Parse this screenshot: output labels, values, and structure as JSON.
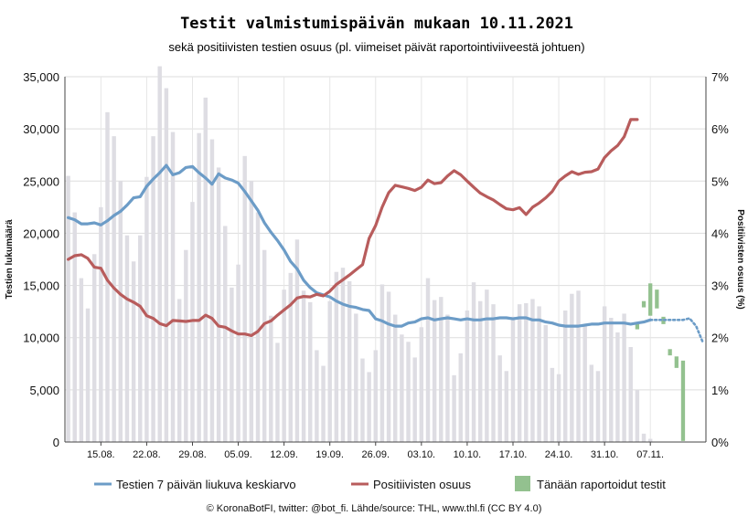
{
  "chart_data": {
    "type": "bar+line",
    "title": "Testit valmistumispäivän mukaan 10.11.2021",
    "subtitle": "sekä positiivisten testien osuus (pl. viimeiset päivät raportointiviiveestä johtuen)",
    "ylabel_left": "Testien lukumäärä",
    "ylabel_right": "Positiivisten osuus (%)",
    "ylim_left": [
      0,
      35000
    ],
    "ylim_right": [
      0,
      7
    ],
    "yticks_left": [
      "0",
      "5,000",
      "10,000",
      "15,000",
      "20,000",
      "25,000",
      "30,000",
      "35,000"
    ],
    "yticks_right": [
      "0%",
      "1%",
      "2%",
      "3%",
      "4%",
      "5%",
      "6%",
      "7%"
    ],
    "x_range": [
      1,
      98
    ],
    "x_ticks": [
      {
        "x": 6,
        "label": "15.08."
      },
      {
        "x": 13,
        "label": "22.08."
      },
      {
        "x": 20,
        "label": "29.08."
      },
      {
        "x": 27,
        "label": "05.09."
      },
      {
        "x": 34,
        "label": "12.09."
      },
      {
        "x": 41,
        "label": "19.09."
      },
      {
        "x": 48,
        "label": "26.09."
      },
      {
        "x": 55,
        "label": "03.10."
      },
      {
        "x": 62,
        "label": "10.10."
      },
      {
        "x": 69,
        "label": "17.10."
      },
      {
        "x": 76,
        "label": "24.10."
      },
      {
        "x": 83,
        "label": "31.10."
      },
      {
        "x": 90,
        "label": "07.11."
      }
    ],
    "grid": true,
    "legend_position": "bottom",
    "bars": [
      25500,
      22000,
      15700,
      12800,
      18000,
      22500,
      31600,
      29300,
      25000,
      19800,
      17300,
      19800,
      25400,
      29300,
      36000,
      33900,
      29700,
      13700,
      18400,
      23000,
      29600,
      33000,
      29000,
      26300,
      20700,
      14800,
      17000,
      27400,
      25000,
      22000,
      18400,
      12100,
      9500,
      14600,
      16200,
      19400,
      14500,
      13400,
      8800,
      7300,
      13500,
      16300,
      16700,
      15400,
      12300,
      8000,
      6700,
      8800,
      15100,
      14400,
      12200,
      10300,
      9600,
      8100,
      11000,
      15700,
      13600,
      13900,
      12200,
      6400,
      8500,
      12600,
      15300,
      13500,
      14600,
      13200,
      8300,
      6800,
      12000,
      13200,
      13300,
      13700,
      13000,
      11200,
      7100,
      6500,
      12600,
      14200,
      14500,
      11200,
      7400,
      6800,
      13000,
      11900,
      10500,
      12300,
      9100,
      5000,
      800,
      300
    ],
    "series": [
      {
        "name": "Testien 7 päivän liukuva keskiarvo",
        "color": "#6c9cc7",
        "axis": "left",
        "values": [
          21500,
          21300,
          20900,
          20900,
          21000,
          20800,
          21200,
          21700,
          22100,
          22700,
          23400,
          23500,
          24500,
          25200,
          25800,
          26500,
          25600,
          25800,
          26300,
          26400,
          25800,
          25300,
          24700,
          25700,
          25300,
          25100,
          24800,
          24000,
          23100,
          22200,
          21000,
          20100,
          19300,
          18400,
          17300,
          16600,
          15500,
          14800,
          14300,
          14100,
          13900,
          13500,
          13200,
          13000,
          12900,
          12700,
          12600,
          11800,
          11600,
          11300,
          11100,
          11100,
          11400,
          11500,
          11800,
          11900,
          11700,
          11800,
          11900,
          11800,
          11700,
          11800,
          11700,
          11700,
          11800,
          11800,
          11900,
          11900,
          11800,
          11900,
          11900,
          11700,
          11700,
          11500,
          11400,
          11200,
          11100,
          11100,
          11100,
          11200,
          11300,
          11300,
          11400,
          11400,
          11400,
          11400,
          11300,
          11400,
          11500,
          11700
        ]
      },
      {
        "name": "Positiivisten osuus",
        "color": "#b85c5c",
        "axis": "right",
        "values": [
          3.5,
          3.57,
          3.59,
          3.52,
          3.35,
          3.33,
          3.1,
          2.95,
          2.83,
          2.74,
          2.68,
          2.6,
          2.42,
          2.37,
          2.27,
          2.23,
          2.33,
          2.32,
          2.31,
          2.33,
          2.33,
          2.43,
          2.37,
          2.22,
          2.2,
          2.13,
          2.07,
          2.07,
          2.04,
          2.12,
          2.27,
          2.32,
          2.43,
          2.53,
          2.63,
          2.76,
          2.79,
          2.78,
          2.83,
          2.8,
          2.89,
          3.02,
          3.11,
          3.2,
          3.3,
          3.4,
          3.9,
          4.15,
          4.5,
          4.78,
          4.92,
          4.89,
          4.86,
          4.82,
          4.88,
          5.02,
          4.95,
          4.97,
          5.1,
          5.2,
          5.12,
          5.0,
          4.88,
          4.77,
          4.7,
          4.64,
          4.55,
          4.47,
          4.45,
          4.49,
          4.36,
          4.5,
          4.58,
          4.68,
          4.8,
          5.0,
          5.1,
          5.18,
          5.13,
          5.17,
          5.18,
          5.23,
          5.45,
          5.58,
          5.68,
          5.85,
          6.18,
          6.18
        ]
      }
    ],
    "dotted_tail": {
      "series": 0,
      "values": [
        [
          95,
          11700
        ],
        [
          96,
          11850
        ],
        [
          97,
          11100
        ],
        [
          98,
          9600
        ]
      ]
    },
    "today_series": {
      "name": "Tänään raportoidut testit",
      "color": "#93c18f",
      "segments": [
        [
          88,
          10800,
          11400
        ],
        [
          89,
          12900,
          13500
        ],
        [
          90,
          12100,
          15200
        ],
        [
          91,
          12800,
          14600
        ],
        [
          92,
          11300,
          12000
        ],
        [
          93,
          8300,
          8900
        ],
        [
          94,
          7100,
          8200
        ],
        [
          95,
          100,
          7800
        ]
      ]
    }
  },
  "legend": [
    {
      "label": "Testien 7 päivän liukuva keskiarvo",
      "kind": "line",
      "color": "#6c9cc7"
    },
    {
      "label": "Positiivisten osuus",
      "kind": "line",
      "color": "#b85c5c"
    },
    {
      "label": "Tänään raportoidut testit",
      "kind": "box",
      "color": "#93c18f"
    }
  ],
  "credit": "© KoronaBotFI, twitter: @bot_fi. Lähde/source: THL, www.thl.fi (CC BY 4.0)"
}
